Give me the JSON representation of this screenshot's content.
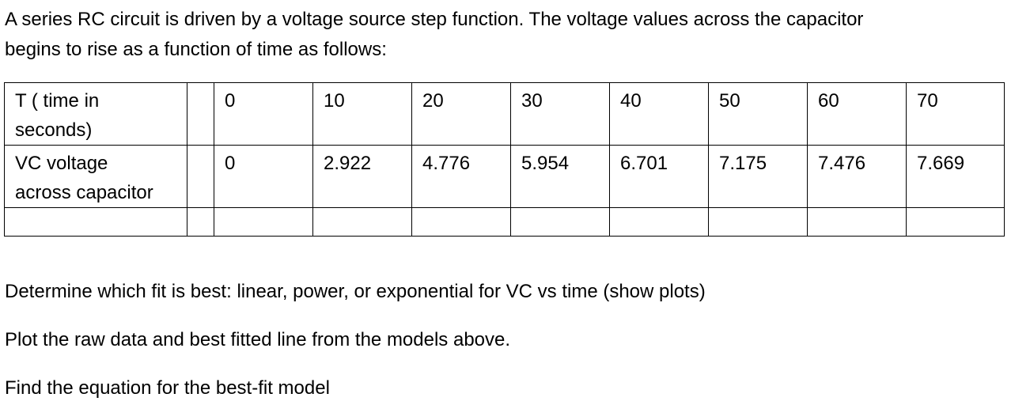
{
  "intro": {
    "line1": "A series RC circuit is driven by a voltage source step function.  The voltage values across the capacitor",
    "line2": "begins to rise as a function of time as follows:"
  },
  "table": {
    "row_time": {
      "label_line1": "T ( time in",
      "label_line2": "seconds)",
      "values": [
        "0",
        "10",
        "20",
        "30",
        "40",
        "50",
        "60",
        "70"
      ]
    },
    "row_voltage": {
      "label_line1": "VC voltage",
      "label_line2": "across capacitor",
      "values": [
        "0",
        "2.922",
        "4.776",
        "5.954",
        "6.701",
        "7.175",
        "7.476",
        "7.669"
      ]
    }
  },
  "questions": {
    "q1": "Determine which fit is best:  linear, power, or exponential for VC vs time (show plots)",
    "q2": "Plot the raw data and best fitted line from the models above.",
    "q3": "Find the equation for the best-fit model"
  }
}
